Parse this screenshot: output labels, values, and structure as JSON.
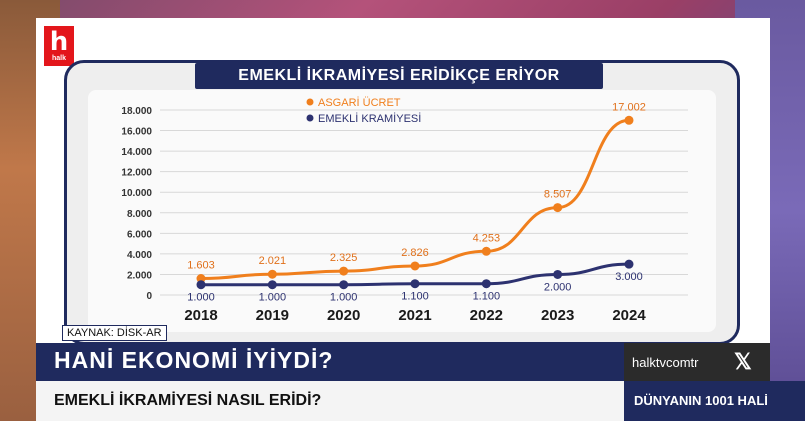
{
  "brand": {
    "logo_letter": "h",
    "logo_text": "halk"
  },
  "headline": "EMEKLİ İKRAMİYESİ ERİDİKÇE ERİYOR",
  "source": "KAYNAK: DİSK-AR",
  "lower_third": {
    "main": "HANİ EKONOMİ İYİYDİ?",
    "sub": "EMEKLİ İKRAMİYESİ NASIL ERİDİ?",
    "handle": "halktvcomtr",
    "x_icon": "x-logo-icon",
    "program": "DÜNYANIN 1001 HALİ"
  },
  "chart_data": {
    "type": "line",
    "categories": [
      "2018",
      "2019",
      "2020",
      "2021",
      "2022",
      "2023",
      "2024"
    ],
    "series": [
      {
        "name": "ASGARİ ÜCRET",
        "color": "#f07f1d",
        "values": [
          1603,
          2021,
          2325,
          2826,
          4253,
          8507,
          17002
        ],
        "labels": [
          "1.603",
          "2.021",
          "2.325",
          "2.826",
          "4.253",
          "8.507",
          "17.002"
        ]
      },
      {
        "name": "EMEKLİ KRAMİYESİ",
        "color": "#2d3270",
        "values": [
          1000,
          1000,
          1000,
          1100,
          1100,
          2000,
          3000
        ],
        "labels": [
          "1.000",
          "1.000",
          "1.000",
          "1.100",
          "1.100",
          "2.000",
          "3.000"
        ]
      }
    ],
    "yticks": [
      "0",
      "2.000",
      "4.000",
      "6.000",
      "8.000",
      "10.000",
      "12.000",
      "14.000",
      "16.000",
      "18.000"
    ],
    "ylim": [
      0,
      18000
    ],
    "grid": true,
    "legend": "top-left"
  }
}
